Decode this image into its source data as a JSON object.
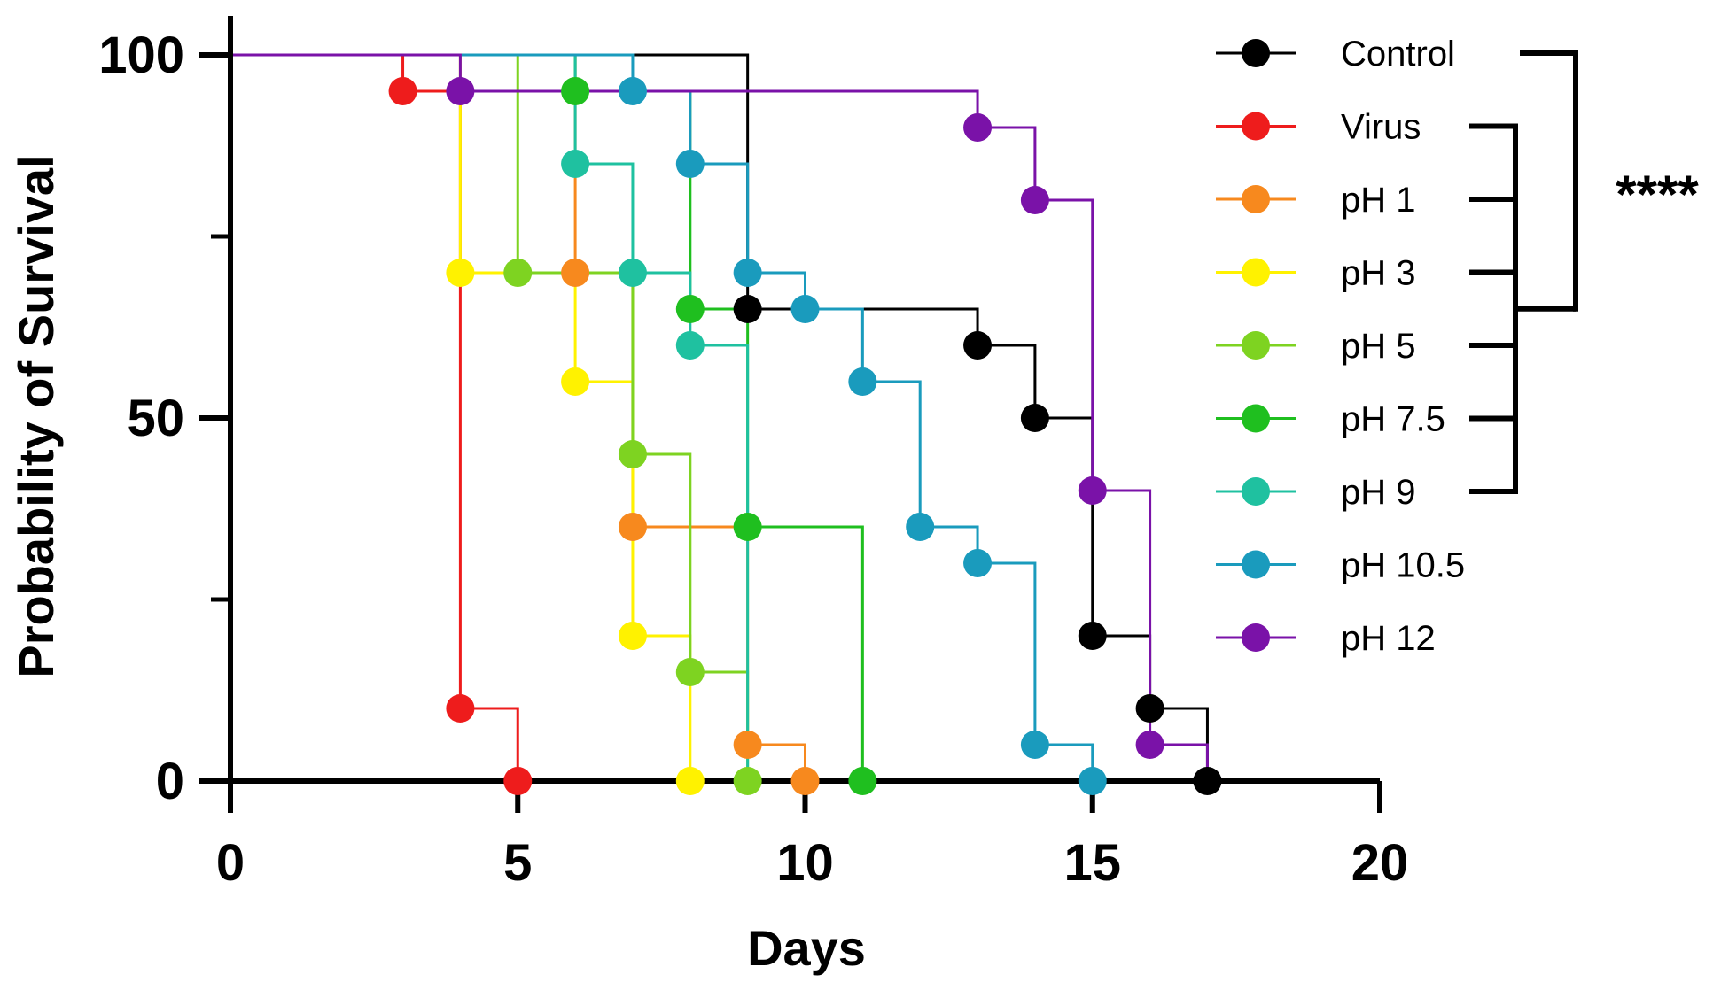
{
  "chart_data": {
    "type": "line",
    "subtype": "kaplan-meier-survival",
    "xlabel": "Days",
    "ylabel": "Probability of Survival",
    "xlim": [
      0,
      20
    ],
    "ylim": [
      0,
      100
    ],
    "x_ticks": [
      "0",
      "5",
      "10",
      "15",
      "20"
    ],
    "y_ticks": [
      "0",
      "50",
      "100"
    ],
    "significance": "****",
    "series": [
      {
        "name": "Control",
        "color": "#000000",
        "steps": [
          [
            0,
            100
          ],
          [
            9,
            65
          ],
          [
            13,
            60
          ],
          [
            14,
            50
          ],
          [
            15,
            20
          ],
          [
            16,
            10
          ],
          [
            17,
            0
          ]
        ],
        "markers": [
          [
            9,
            65
          ],
          [
            13,
            60
          ],
          [
            14,
            50
          ],
          [
            15,
            20
          ],
          [
            16,
            10
          ],
          [
            17,
            0
          ]
        ]
      },
      {
        "name": "Virus",
        "color": "#ee1c1c",
        "steps": [
          [
            0,
            100
          ],
          [
            3,
            95
          ],
          [
            4,
            10
          ],
          [
            5,
            0
          ]
        ],
        "markers": [
          [
            3,
            95
          ],
          [
            4,
            10
          ],
          [
            5,
            0
          ]
        ]
      },
      {
        "name": "pH 1",
        "color": "#f7891e",
        "steps": [
          [
            0,
            100
          ],
          [
            6,
            70
          ],
          [
            7,
            35
          ],
          [
            9,
            5
          ],
          [
            10,
            0
          ]
        ],
        "markers": [
          [
            6,
            70
          ],
          [
            7,
            35
          ],
          [
            9,
            5
          ],
          [
            10,
            0
          ]
        ]
      },
      {
        "name": "pH 3",
        "color": "#fff200",
        "steps": [
          [
            0,
            100
          ],
          [
            4,
            70
          ],
          [
            6,
            55
          ],
          [
            7,
            20
          ],
          [
            8,
            0
          ]
        ],
        "markers": [
          [
            4,
            70
          ],
          [
            6,
            55
          ],
          [
            7,
            20
          ],
          [
            8,
            0
          ]
        ]
      },
      {
        "name": "pH 5",
        "color": "#7ed321",
        "steps": [
          [
            0,
            100
          ],
          [
            5,
            70
          ],
          [
            7,
            45
          ],
          [
            8,
            15
          ],
          [
            9,
            0
          ]
        ],
        "markers": [
          [
            5,
            70
          ],
          [
            7,
            45
          ],
          [
            8,
            15
          ],
          [
            9,
            0
          ]
        ]
      },
      {
        "name": "pH 7.5",
        "color": "#1fbf1f",
        "steps": [
          [
            0,
            100
          ],
          [
            6,
            95
          ],
          [
            8,
            65
          ],
          [
            9,
            35
          ],
          [
            11,
            0
          ]
        ],
        "markers": [
          [
            6,
            95
          ],
          [
            8,
            65
          ],
          [
            9,
            35
          ],
          [
            11,
            0
          ]
        ]
      },
      {
        "name": "pH 9",
        "color": "#1fc1a0",
        "steps": [
          [
            0,
            100
          ],
          [
            6,
            85
          ],
          [
            7,
            70
          ],
          [
            8,
            60
          ],
          [
            9,
            0
          ]
        ],
        "markers": [
          [
            6,
            85
          ],
          [
            7,
            70
          ],
          [
            8,
            60
          ]
        ]
      },
      {
        "name": "pH 10.5",
        "color": "#1a9bbd",
        "steps": [
          [
            0,
            100
          ],
          [
            7,
            95
          ],
          [
            8,
            85
          ],
          [
            9,
            70
          ],
          [
            10,
            65
          ],
          [
            11,
            55
          ],
          [
            12,
            35
          ],
          [
            13,
            30
          ],
          [
            14,
            5
          ],
          [
            15,
            0
          ]
        ],
        "markers": [
          [
            7,
            95
          ],
          [
            8,
            85
          ],
          [
            9,
            70
          ],
          [
            10,
            65
          ],
          [
            11,
            55
          ],
          [
            12,
            35
          ],
          [
            13,
            30
          ],
          [
            14,
            5
          ],
          [
            15,
            0
          ]
        ]
      },
      {
        "name": "pH 12",
        "color": "#7a12a8",
        "steps": [
          [
            0,
            100
          ],
          [
            4,
            95
          ],
          [
            13,
            90
          ],
          [
            14,
            80
          ],
          [
            15,
            40
          ],
          [
            16,
            5
          ],
          [
            17,
            0
          ]
        ],
        "markers": [
          [
            4,
            95
          ],
          [
            13,
            90
          ],
          [
            14,
            80
          ],
          [
            15,
            40
          ],
          [
            16,
            5
          ]
        ]
      }
    ]
  }
}
